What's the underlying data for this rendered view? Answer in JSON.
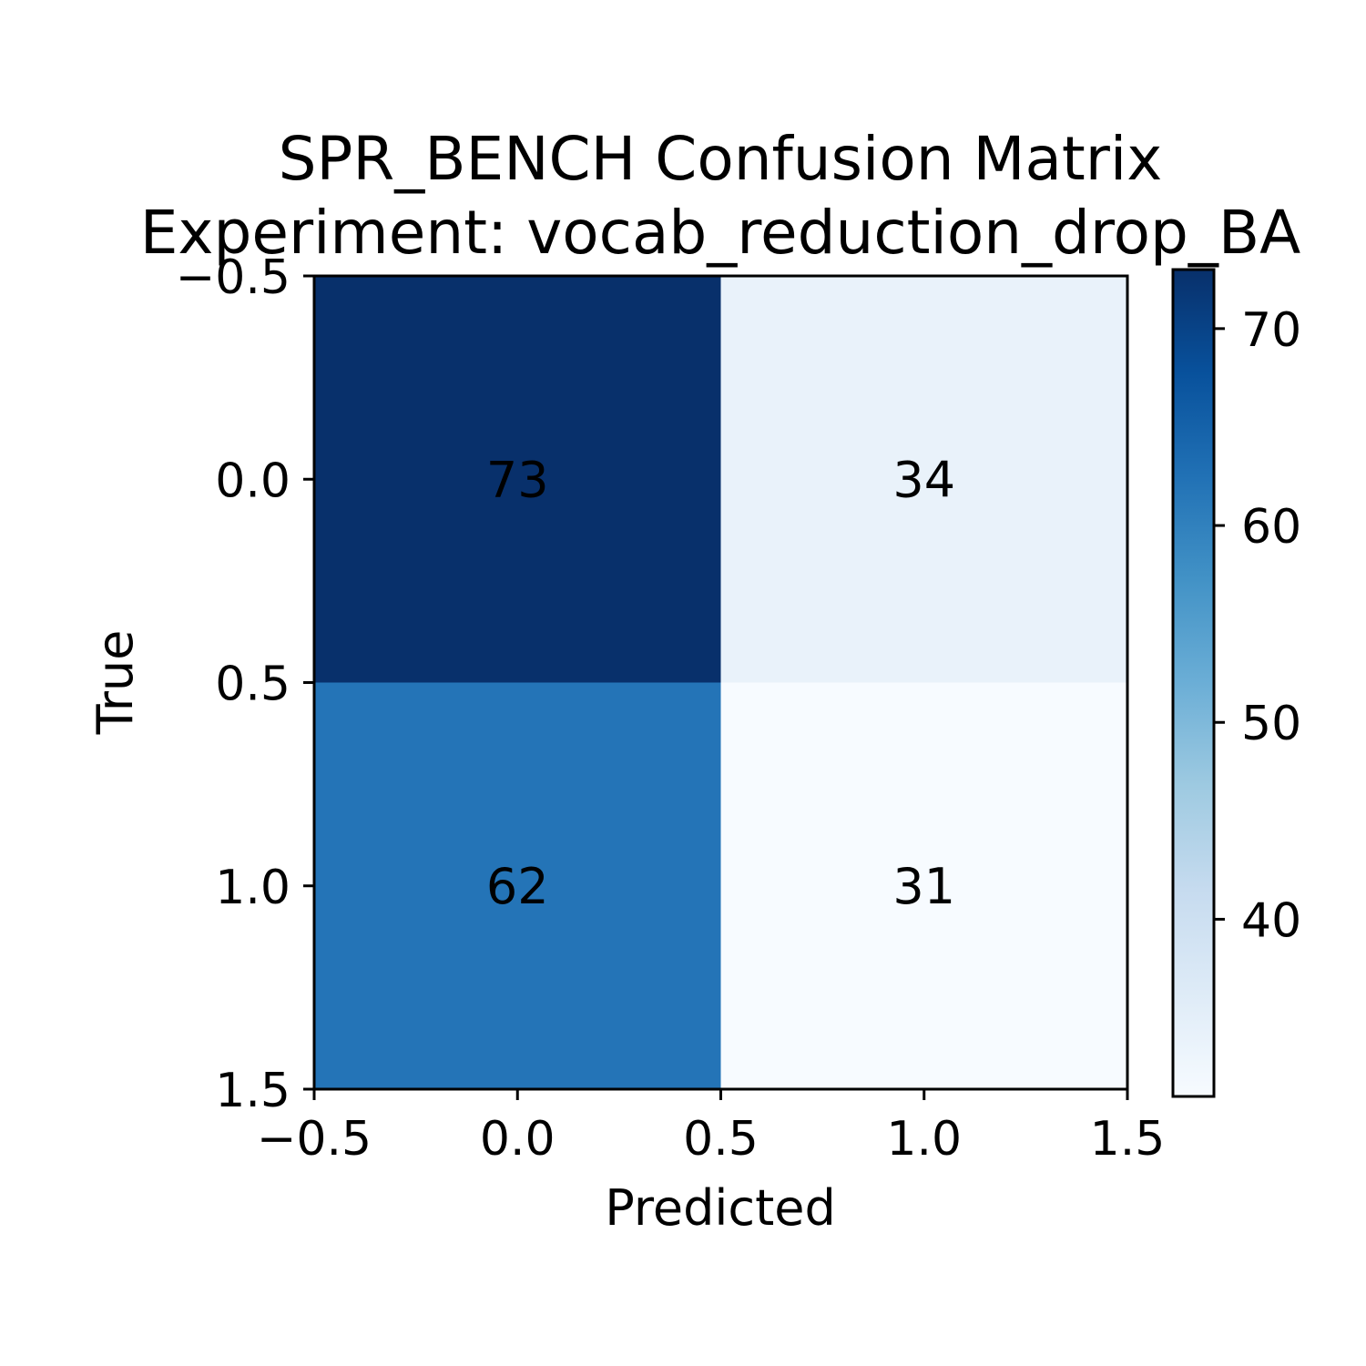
{
  "chart_data": {
    "type": "heatmap",
    "title": [
      "SPR_BENCH Confusion Matrix",
      "Experiment: vocab_reduction_drop_BA"
    ],
    "xlabel": "Predicted",
    "ylabel": "True",
    "matrix": [
      [
        73,
        34
      ],
      [
        62,
        31
      ]
    ],
    "x_ticks": [
      "−0.5",
      "0.0",
      "0.5",
      "1.0",
      "1.5"
    ],
    "y_ticks": [
      "−0.5",
      "0.0",
      "0.5",
      "1.0",
      "1.5"
    ],
    "xlim": [
      -0.5,
      1.5
    ],
    "ylim": [
      1.5,
      -0.5
    ],
    "colormap": "Blues",
    "colorbar": {
      "range": [
        31,
        73
      ],
      "ticks": [
        "40",
        "50",
        "60",
        "70"
      ]
    },
    "grid": false
  }
}
